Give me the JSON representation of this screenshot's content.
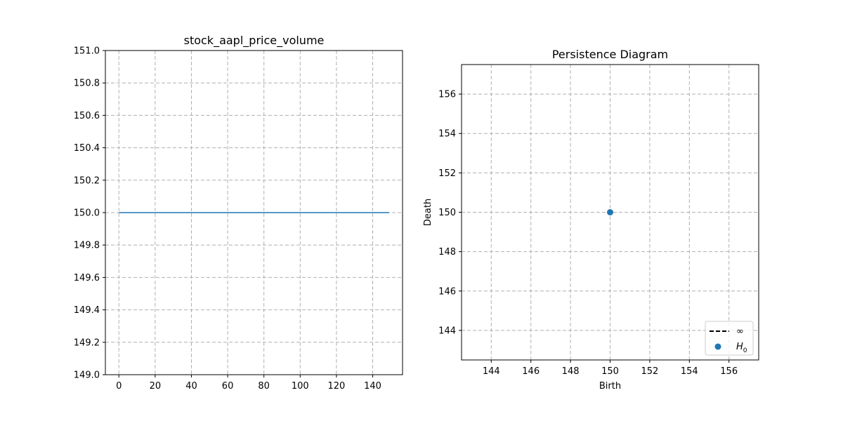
{
  "chart_data": [
    {
      "type": "line",
      "title": "stock_aapl_price_volume",
      "xlabel": "",
      "ylabel": "",
      "xlim": [
        -7.45,
        156.45
      ],
      "ylim": [
        149.0,
        151.0
      ],
      "x_ticks": [
        0,
        20,
        40,
        60,
        80,
        100,
        120,
        140
      ],
      "x_tick_labels": [
        "0",
        "20",
        "40",
        "60",
        "80",
        "100",
        "120",
        "140"
      ],
      "y_ticks": [
        149.0,
        149.2,
        149.4,
        149.6,
        149.8,
        150.0,
        150.2,
        150.4,
        150.6,
        150.8,
        151.0
      ],
      "y_tick_labels": [
        "149.0",
        "149.2",
        "149.4",
        "149.6",
        "149.8",
        "150.0",
        "150.2",
        "150.4",
        "150.6",
        "150.8",
        "151.0"
      ],
      "grid": true,
      "series": [
        {
          "x": [
            0,
            149
          ],
          "y": [
            150.0,
            150.0
          ],
          "color": "#1f77b4"
        }
      ]
    },
    {
      "type": "scatter",
      "title": "Persistence Diagram",
      "xlabel": "Birth",
      "ylabel": "Death",
      "xlim": [
        142.5,
        157.5
      ],
      "ylim": [
        142.5,
        157.5
      ],
      "x_ticks": [
        144,
        146,
        148,
        150,
        152,
        154,
        156
      ],
      "x_tick_labels": [
        "144",
        "146",
        "148",
        "150",
        "152",
        "154",
        "156"
      ],
      "y_ticks": [
        144,
        146,
        148,
        150,
        152,
        154,
        156
      ],
      "y_tick_labels": [
        "144",
        "146",
        "148",
        "150",
        "152",
        "154",
        "156"
      ],
      "grid": true,
      "legend_position": "bottom-right",
      "series": [
        {
          "name": "H",
          "name_subscript": "0",
          "x": [
            150
          ],
          "y": [
            150
          ],
          "color": "#1f77b4"
        }
      ],
      "legend": [
        {
          "label": "∞",
          "marker": "dashed-line",
          "color": "#000000"
        },
        {
          "label": "H",
          "subscript": "0",
          "marker": "circle",
          "color": "#1f77b4"
        }
      ]
    }
  ]
}
